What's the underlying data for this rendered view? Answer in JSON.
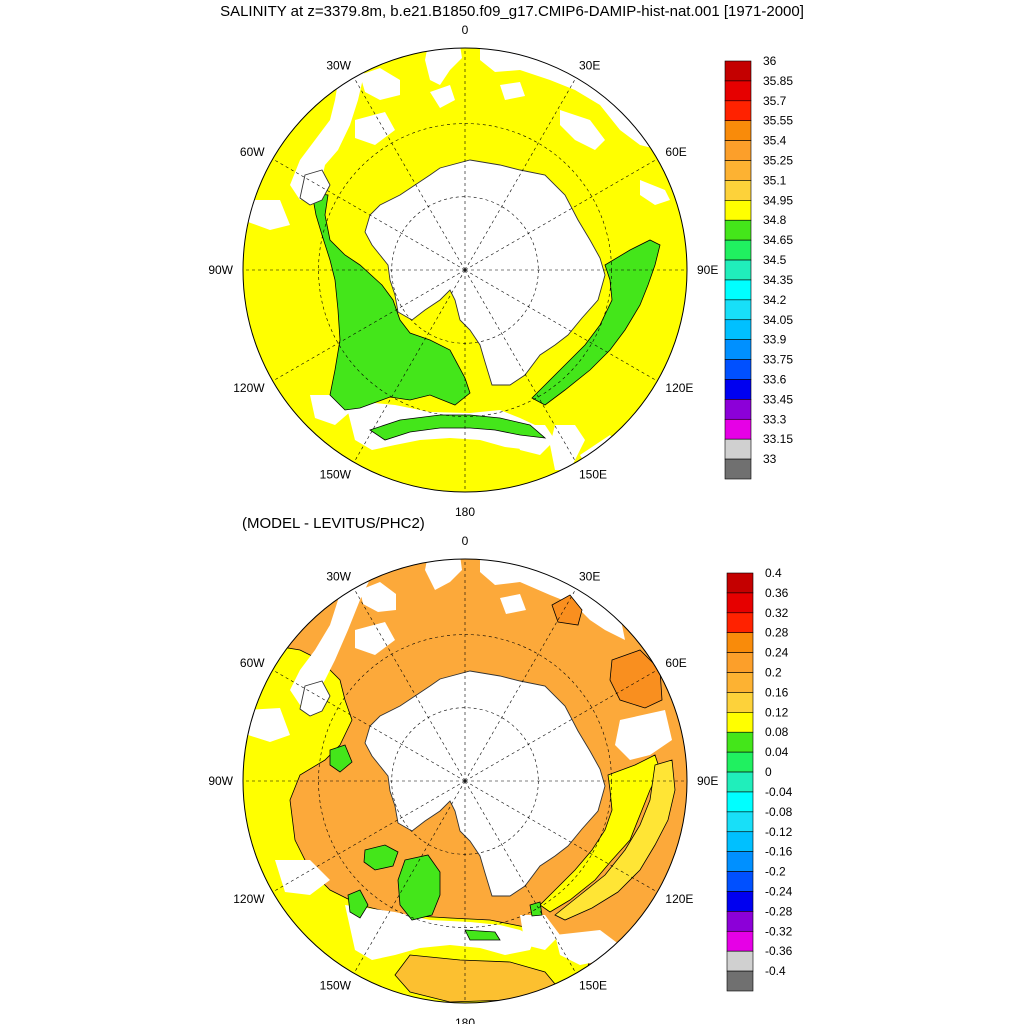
{
  "title": "SALINITY at z=3379.8m, b.e21.B1850.f09_g17.CMIP6-DAMIP-hist-nat.001 [1971-2000]",
  "subtitle": "(MODEL - LEVITUS/PHC2)",
  "longitude_labels": [
    "0",
    "30E",
    "60E",
    "90E",
    "120E",
    "150E",
    "180",
    "150W",
    "120W",
    "90W",
    "60W",
    "30W"
  ],
  "colors": {
    "land": "#ffffff",
    "coast": "#333333",
    "grid": "#000000",
    "yellow": "#ffff00",
    "green": "#44e61a",
    "orange": "#fca93a",
    "light_orange": "#fcc030",
    "dark_orange": "#f98f1f",
    "pale_yellow": "#ffe535"
  },
  "top_map": {
    "name": "salinity",
    "colorbar": {
      "labels": [
        "36",
        "35.85",
        "35.7",
        "35.55",
        "35.4",
        "35.25",
        "35.1",
        "34.95",
        "34.8",
        "34.65",
        "34.5",
        "34.35",
        "34.2",
        "34.05",
        "33.9",
        "33.75",
        "33.6",
        "33.45",
        "33.3",
        "33.15",
        "33"
      ],
      "colors": [
        "#c40000",
        "#e60000",
        "#ff2200",
        "#f98b0a",
        "#fc9f2a",
        "#fdb232",
        "#fdd23a",
        "#ffff00",
        "#44e61a",
        "#20f060",
        "#20eebb",
        "#00ffff",
        "#18dff8",
        "#00c0ff",
        "#0090ff",
        "#0050ff",
        "#0000f0",
        "#8c00d8",
        "#e600e6",
        "#d0d0d0",
        "#707070"
      ]
    }
  },
  "bottom_map": {
    "name": "difference",
    "colorbar": {
      "labels": [
        "0.4",
        "0.36",
        "0.32",
        "0.28",
        "0.24",
        "0.2",
        "0.16",
        "0.12",
        "0.08",
        "0.04",
        "0",
        "-0.04",
        "-0.08",
        "-0.12",
        "-0.16",
        "-0.2",
        "-0.24",
        "-0.28",
        "-0.32",
        "-0.36",
        "-0.4"
      ],
      "colors": [
        "#c40000",
        "#e60000",
        "#ff2200",
        "#f98b0a",
        "#fc9f2a",
        "#fdb232",
        "#fdd23a",
        "#ffff00",
        "#44e61a",
        "#20f060",
        "#20eebb",
        "#00ffff",
        "#18dff8",
        "#00c0ff",
        "#0090ff",
        "#0050ff",
        "#0000f0",
        "#8c00d8",
        "#e600e6",
        "#d0d0d0",
        "#707070"
      ]
    }
  }
}
